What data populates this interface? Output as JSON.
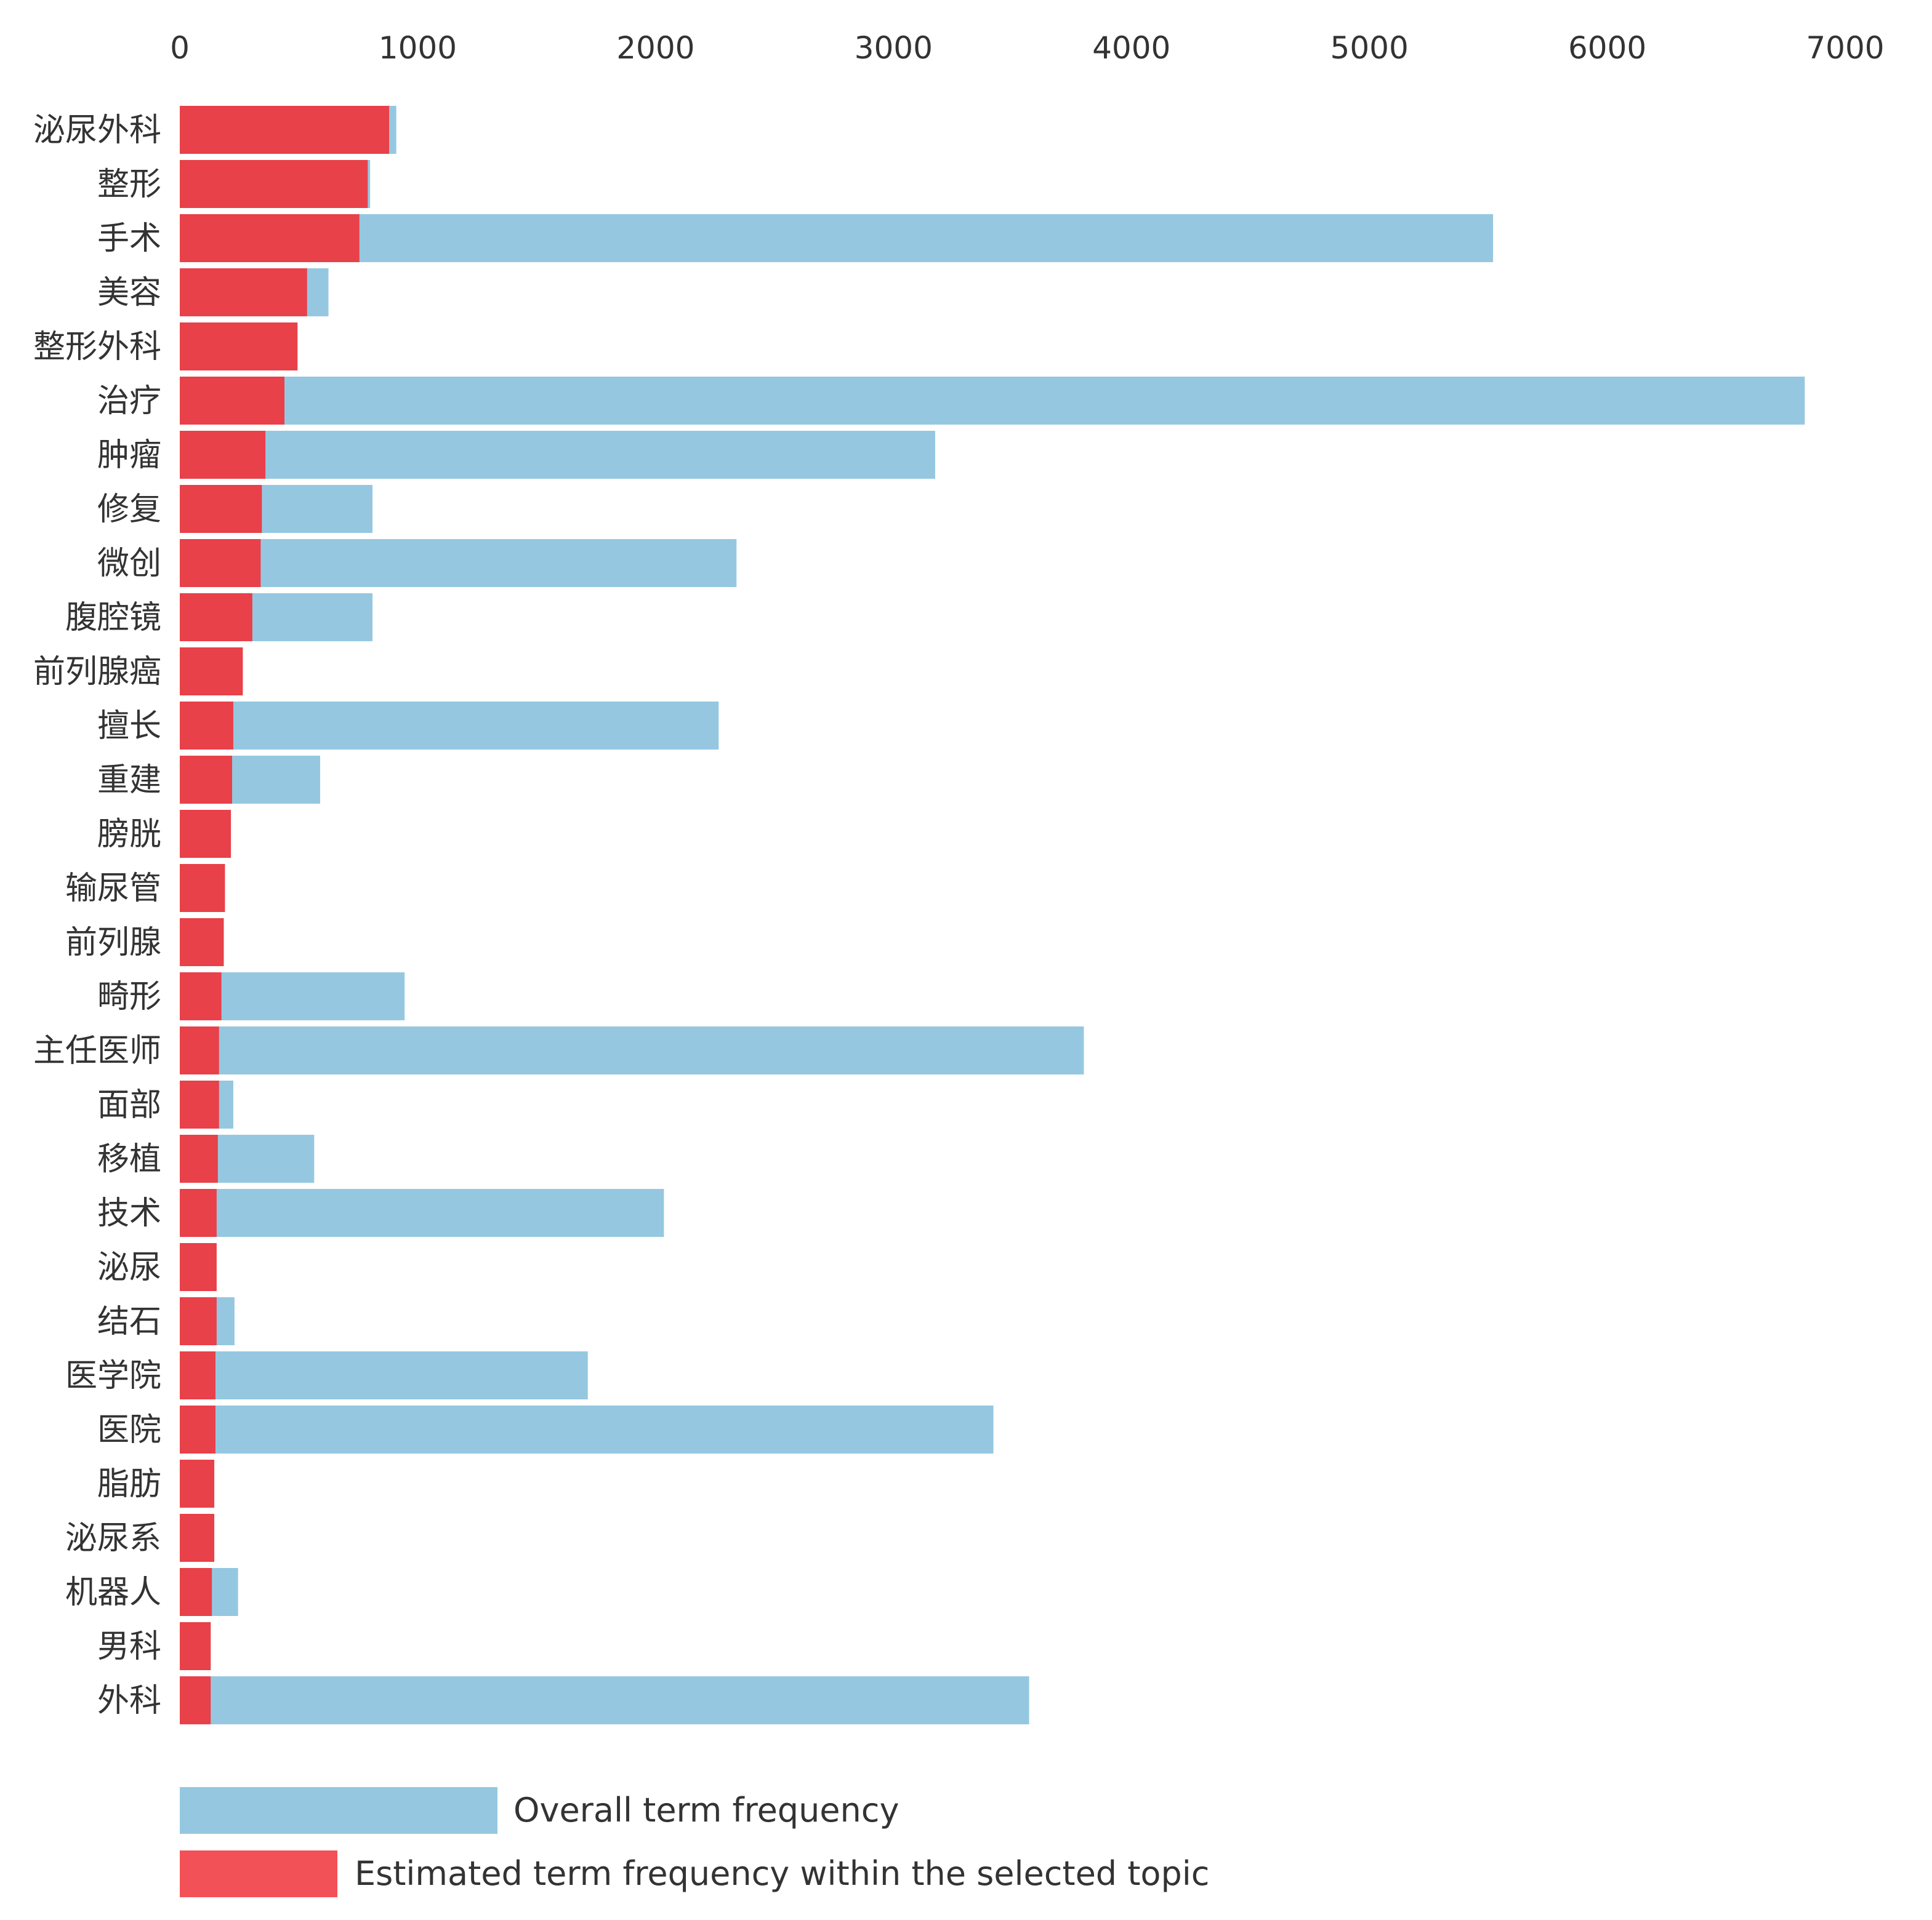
{
  "chart_data": {
    "type": "bar",
    "orientation": "horizontal",
    "stacked": false,
    "overlay": true,
    "title": "",
    "xlabel": "",
    "ylabel": "",
    "xlim": [
      0,
      7000
    ],
    "x_ticks": [
      0,
      1000,
      2000,
      3000,
      4000,
      5000,
      6000,
      7000
    ],
    "x_tick_labels": [
      "0",
      "1000",
      "2000",
      "3000",
      "4000",
      "5000",
      "6000",
      "7000"
    ],
    "x_axis_position": "top",
    "grid": false,
    "legend_position": "bottom-left",
    "categories": [
      "泌尿外科",
      "整形",
      "手术",
      "美容",
      "整形外科",
      "治疗",
      "肿瘤",
      "修复",
      "微创",
      "腹腔镜",
      "前列腺癌",
      "擅长",
      "重建",
      "膀胱",
      "输尿管",
      "前列腺",
      "畸形",
      "主任医师",
      "面部",
      "移植",
      "技术",
      "泌尿",
      "结石",
      "医学院",
      "医院",
      "脂肪",
      "泌尿系",
      "机器人",
      "男科",
      "外科"
    ],
    "series": [
      {
        "name": "Overall term frequency",
        "color": "#95C8E0",
        "values": [
          910,
          800,
          5520,
          625,
          480,
          6830,
          3175,
          810,
          2340,
          810,
          260,
          2265,
          590,
          210,
          185,
          180,
          945,
          3800,
          225,
          565,
          2035,
          150,
          230,
          1715,
          3420,
          145,
          145,
          245,
          130,
          3570
        ]
      },
      {
        "name": "Estimated term frequency within the selected topic",
        "color": "#E8414A",
        "values": [
          880,
          790,
          755,
          535,
          495,
          440,
          360,
          345,
          340,
          305,
          265,
          225,
          220,
          215,
          190,
          185,
          175,
          165,
          165,
          160,
          155,
          155,
          155,
          150,
          150,
          145,
          145,
          135,
          130,
          130
        ]
      }
    ]
  },
  "legend": {
    "overall_label": "Overall term frequency",
    "overall_color": "#95C8E0",
    "topic_label": "Estimated term frequency within the selected topic",
    "topic_color": "#F25158"
  }
}
